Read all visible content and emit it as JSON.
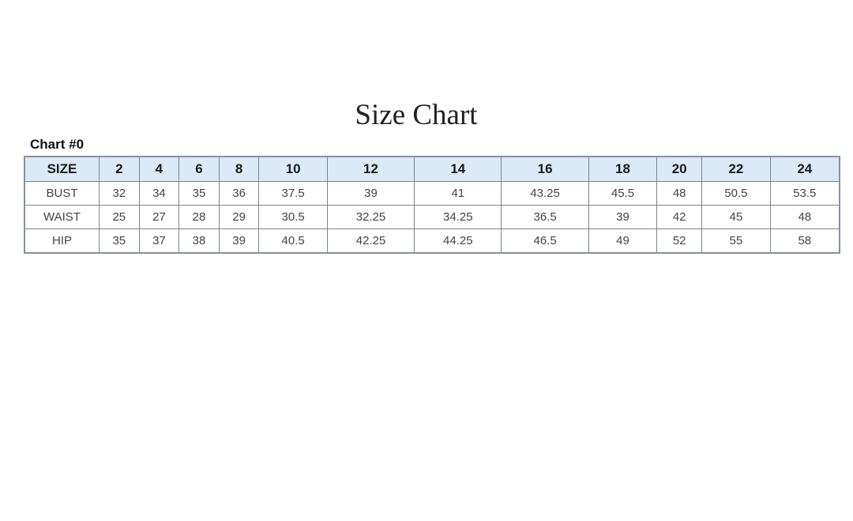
{
  "title": "Size Chart",
  "subtitle": "Chart #0",
  "table": {
    "header": [
      "SIZE",
      "2",
      "4",
      "6",
      "8",
      "10",
      "12",
      "14",
      "16",
      "18",
      "20",
      "22",
      "24"
    ],
    "rows": [
      [
        "BUST",
        "32",
        "34",
        "35",
        "36",
        "37.5",
        "39",
        "41",
        "43.25",
        "45.5",
        "48",
        "50.5",
        "53.5"
      ],
      [
        "WAIST",
        "25",
        "27",
        "28",
        "29",
        "30.5",
        "32.25",
        "34.25",
        "36.5",
        "39",
        "42",
        "45",
        "48"
      ],
      [
        "HIP",
        "35",
        "37",
        "38",
        "39",
        "40.5",
        "42.25",
        "44.25",
        "46.5",
        "49",
        "52",
        "55",
        "58"
      ]
    ]
  },
  "colors": {
    "header_bg": "#dce9f7",
    "border": "#7d838b"
  }
}
